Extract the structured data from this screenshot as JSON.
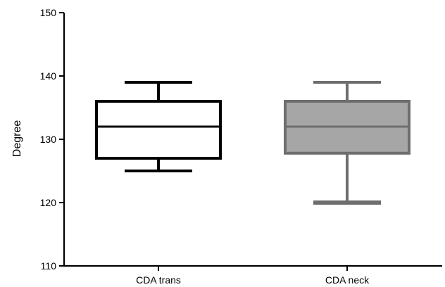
{
  "chart_data": {
    "type": "box",
    "ylabel": "Degree",
    "xlabel": "",
    "ylim": [
      110,
      150
    ],
    "yticks": [
      110,
      120,
      130,
      140,
      150
    ],
    "grid": false,
    "categories": [
      "CDA trans",
      "CDA neck"
    ],
    "series": [
      {
        "category": "CDA trans",
        "min": 125,
        "q1": 127,
        "median": 132,
        "q3": 136,
        "max": 139,
        "fill": "#ffffff",
        "stroke": "#000000"
      },
      {
        "category": "CDA neck",
        "min": 120,
        "q1": 127.8,
        "median": 132,
        "q3": 136,
        "max": 139,
        "fill": "#a6a6a6",
        "stroke": "#6e6e6e"
      }
    ]
  }
}
